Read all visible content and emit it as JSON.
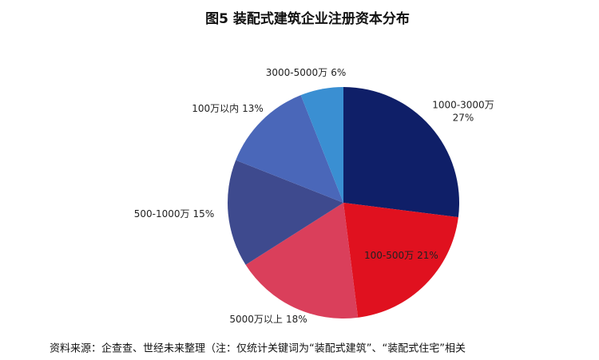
{
  "chart_data": {
    "type": "pie",
    "title": "图5 装配式建筑企业注册资本分布",
    "categories": [
      "1000-3000万",
      "100-500万",
      "5000万以上",
      "500-1000万",
      "100万以内",
      "3000-5000万"
    ],
    "values": [
      27,
      21,
      18,
      15,
      13,
      6
    ],
    "value_labels": [
      "27%",
      "21%",
      "18%",
      "15%",
      "13%",
      "6%"
    ],
    "colors": [
      "#0f1f68",
      "#e0111f",
      "#da3f5b",
      "#3e4a8e",
      "#4a67b9",
      "#3a8fd2"
    ],
    "source": "资料来源：企查查、世经未来整理（注：仅统计关键词为“装配式建筑”、“装配式住宅”相关"
  }
}
